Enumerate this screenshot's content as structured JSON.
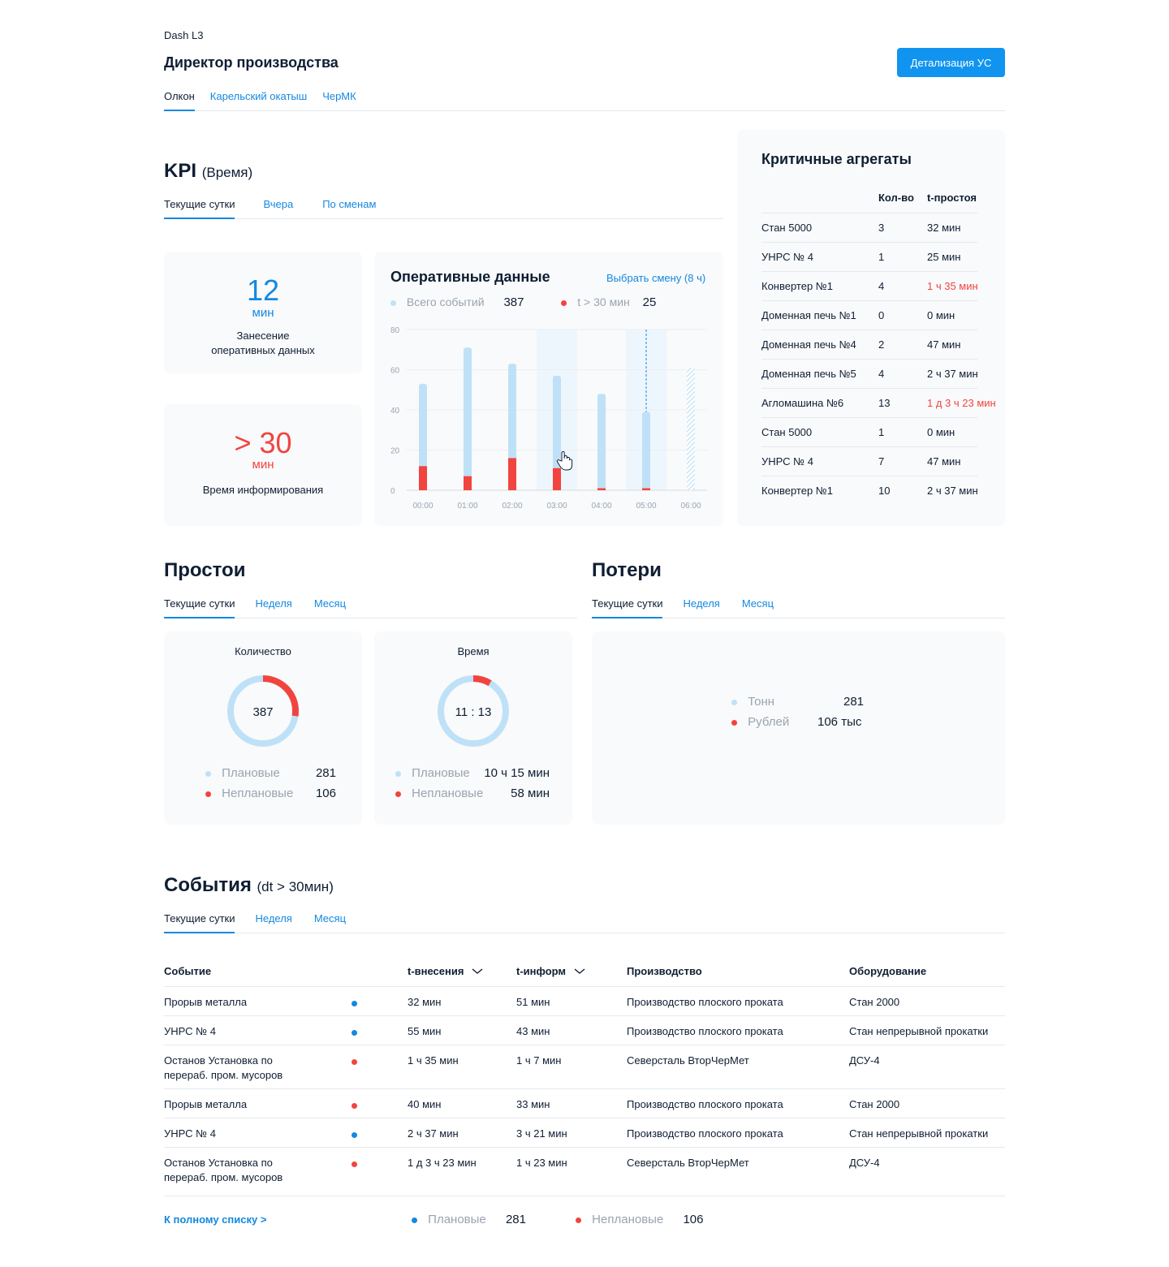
{
  "header": {
    "app_title": "Dash L3",
    "page_title": "Директор производства",
    "detail_button": "Детализация УС",
    "tabs": [
      "Олкон",
      "Карельский окатыш",
      "ЧерМК"
    ]
  },
  "kpi": {
    "title": "KPI",
    "title_suffix": "(Время)",
    "tabs": [
      "Текущие сутки",
      "Вчера",
      "По сменам"
    ],
    "tile1": {
      "value": "12",
      "unit": "мин",
      "label_line1": "Занесение",
      "label_line2": "оперативных данных"
    },
    "tile2": {
      "value": "> 30",
      "unit": "мин",
      "label": "Время информирования"
    }
  },
  "operative": {
    "title": "Оперативные данные",
    "select_shift": "Выбрать смену (8 ч)",
    "legend_total_label": "Всего событий",
    "legend_total_value": "387",
    "legend_over_label": "t > 30 мин",
    "legend_over_value": "25"
  },
  "chart_data": {
    "type": "bar",
    "categories": [
      "00:00",
      "01:00",
      "02:00",
      "03:00",
      "04:00",
      "05:00",
      "06:00"
    ],
    "series": [
      {
        "name": "Всего событий",
        "values": [
          53,
          71,
          63,
          57,
          48,
          39,
          61
        ]
      },
      {
        "name": "t > 30 мин",
        "values": [
          12,
          7,
          16,
          11,
          1,
          1,
          0
        ]
      }
    ],
    "yticks": [
      "80",
      "60",
      "40",
      "20",
      "0"
    ],
    "ylim": [
      0,
      80
    ],
    "highlighted_categories": [
      "03:00",
      "05:00"
    ],
    "projected_category": "06:00",
    "colors": {
      "total": "#bfe1f7",
      "over": "#f2443f",
      "highlight": "#eef6fd"
    }
  },
  "critical": {
    "title": "Критичные агрегаты",
    "col_count": "Кол-во",
    "col_downtime": "t-простоя",
    "rows": [
      {
        "name": "Стан 5000",
        "count": "3",
        "time": "32 мин",
        "alert": false
      },
      {
        "name": "УНРС № 4",
        "count": "1",
        "time": "25 мин",
        "alert": false
      },
      {
        "name": "Конвертер №1",
        "count": "4",
        "time": "1 ч 35 мин",
        "alert": true
      },
      {
        "name": "Доменная печь №1",
        "count": "0",
        "time": "0 мин",
        "alert": false
      },
      {
        "name": "Доменная печь №4",
        "count": "2",
        "time": "47 мин",
        "alert": false
      },
      {
        "name": "Доменная печь №5",
        "count": "4",
        "time": "2 ч 37 мин",
        "alert": false
      },
      {
        "name": "Агломашина №6",
        "count": "13",
        "time": "1 д 3 ч 23  мин",
        "alert": true
      },
      {
        "name": "Стан 5000",
        "count": "1",
        "time": "0 мин",
        "alert": false
      },
      {
        "name": "УНРС № 4",
        "count": "7",
        "time": "47 мин",
        "alert": false
      },
      {
        "name": "Конвертер №1",
        "count": "10",
        "time": "2 ч 37 мин",
        "alert": false
      }
    ]
  },
  "downtime": {
    "title": "Простои",
    "tabs": [
      "Текущие сутки",
      "Неделя",
      "Месяц"
    ],
    "count_card": {
      "title": "Количество",
      "center": "387",
      "planned_label": "Плановые",
      "planned_value": "281",
      "unplanned_label": "Неплановые",
      "unplanned_value": "106",
      "unplanned_fraction": 0.274
    },
    "time_card": {
      "title": "Время",
      "center": "11 : 13",
      "planned_label": "Плановые",
      "planned_value": "10 ч 15 мин",
      "unplanned_label": "Неплановые",
      "unplanned_value": "58 мин",
      "unplanned_fraction": 0.086
    }
  },
  "losses": {
    "title": "Потери",
    "tabs": [
      "Текущие сутки",
      "Неделя",
      "Месяц"
    ],
    "tons_label": "Тонн",
    "tons_value": "281",
    "rub_label": "Рублей",
    "rub_value": "106 тыс"
  },
  "events": {
    "title": "События",
    "title_suffix": "(dt > 30мин)",
    "tabs": [
      "Текущие сутки",
      "Неделя",
      "Месяц"
    ],
    "columns": [
      "Событие",
      "t-внесения",
      "t-информ",
      "Производство",
      "Оборудование"
    ],
    "rows": [
      {
        "event": "Прорыв металла",
        "event2": "",
        "status": "blue",
        "t_in": "32 мин",
        "t_inf": "51 мин",
        "prod": "Производство плоского проката",
        "equip": "Стан 2000"
      },
      {
        "event": "УНРС № 4",
        "event2": "",
        "status": "blue",
        "t_in": "55 мин",
        "t_inf": "43 мин",
        "prod": "Производство плоского проката",
        "equip": "Стан непрерывной прокатки"
      },
      {
        "event": "Останов Установка по",
        "event2": "перераб. пром. мусоров",
        "status": "red",
        "t_in": "1 ч 35 мин",
        "t_inf": "1 ч 7 мин",
        "prod": "Северсталь ВторЧерМет",
        "equip": "ДСУ-4"
      },
      {
        "event": "Прорыв металла",
        "event2": "",
        "status": "red",
        "t_in": "40 мин",
        "t_inf": "33 мин",
        "prod": "Производство плоского проката",
        "equip": "Стан 2000"
      },
      {
        "event": "УНРС № 4",
        "event2": "",
        "status": "blue",
        "t_in": "2 ч 37 мин",
        "t_inf": "3 ч 21 мин",
        "prod": "Производство плоского проката",
        "equip": "Стан непрерывной прокатки"
      },
      {
        "event": "Останов Установка по",
        "event2": "перераб. пром. мусоров",
        "status": "red",
        "t_in": "1 д 3 ч 23  мин",
        "t_inf": "1 ч 23  мин",
        "prod": "Северсталь ВторЧерМет",
        "equip": "ДСУ-4"
      }
    ],
    "full_list_link": "К полному списку >",
    "planned_label": "Плановые",
    "planned_value": "281",
    "unplanned_label": "Неплановые",
    "unplanned_value": "106"
  },
  "colors": {
    "accent": "#1488e0",
    "alert": "#f2443f",
    "light_blue": "#bfe1f7",
    "dot_blue": "#1488e0"
  }
}
